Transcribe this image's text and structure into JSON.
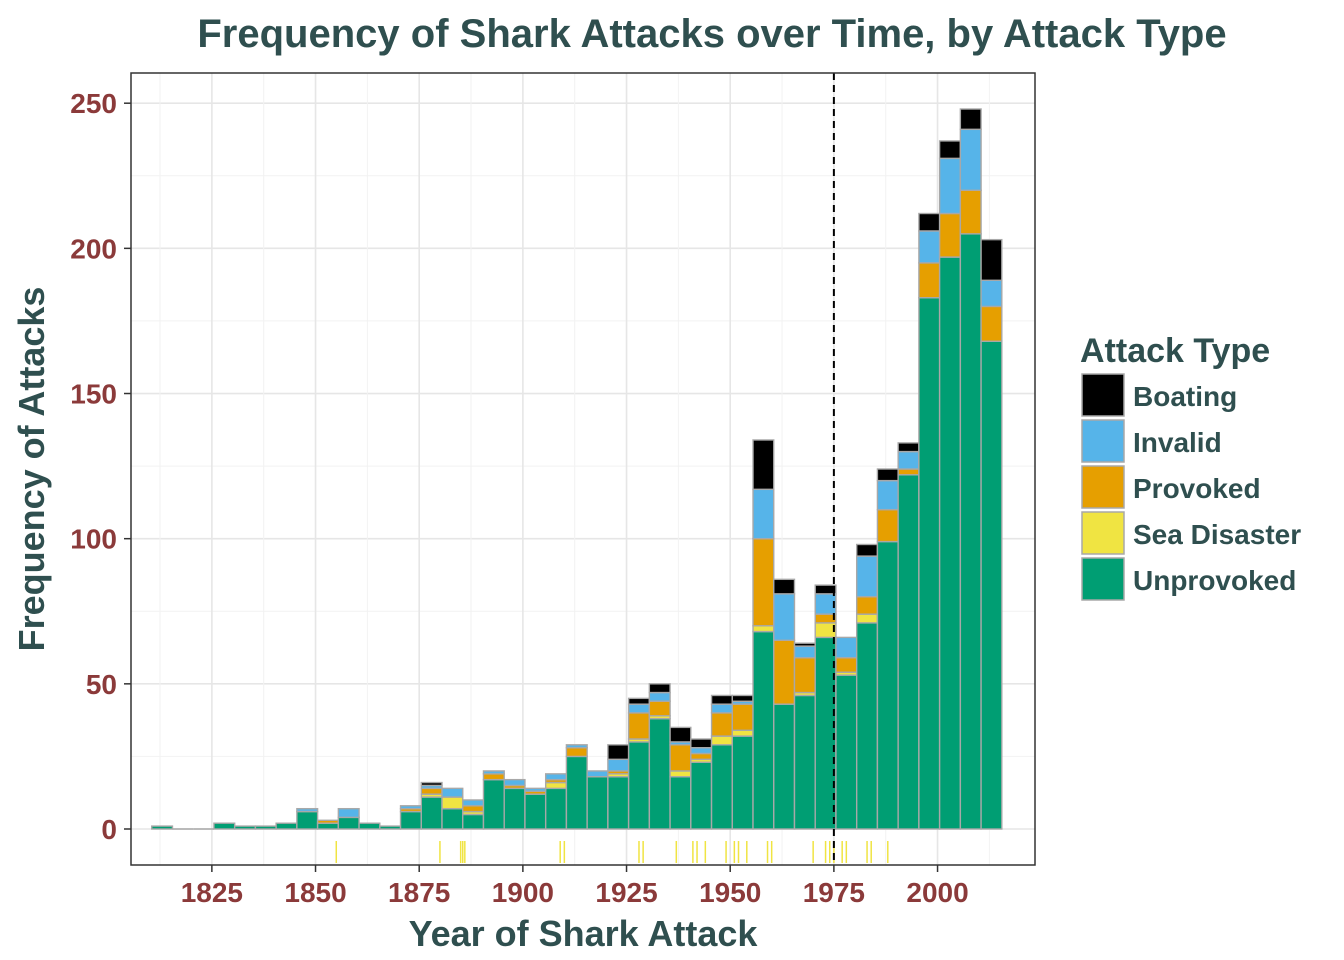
{
  "chart_data": {
    "type": "bar",
    "stacked": true,
    "title": "Frequency of Shark Attacks over Time, by Attack Type",
    "xlabel": "Year of Shark Attack",
    "ylabel": "Frequency of Attacks",
    "bin_width_years": 5,
    "bin_centers": [
      1813,
      1818,
      1823,
      1828,
      1833,
      1838,
      1843,
      1848,
      1853,
      1858,
      1863,
      1868,
      1873,
      1878,
      1883,
      1888,
      1893,
      1898,
      1903,
      1908,
      1913,
      1918,
      1923,
      1928,
      1933,
      1938,
      1943,
      1948,
      1953,
      1958,
      1963,
      1968,
      1973,
      1978,
      1983,
      1988,
      1993,
      1998,
      2003,
      2008,
      2013
    ],
    "series": [
      {
        "name": "Unprovoked",
        "color": "#009e73",
        "values": [
          1,
          0,
          0,
          2,
          1,
          1,
          2,
          6,
          2,
          4,
          2,
          1,
          6,
          11,
          7,
          5,
          17,
          14,
          12,
          14,
          25,
          18,
          18,
          30,
          38,
          18,
          23,
          29,
          32,
          68,
          43,
          46,
          66,
          53,
          71,
          99,
          122,
          183,
          197,
          205,
          168
        ]
      },
      {
        "name": "Sea Disaster",
        "color": "#f0e442",
        "values": [
          0,
          0,
          0,
          0,
          0,
          0,
          0,
          0,
          0,
          0,
          0,
          0,
          0,
          1,
          4,
          1,
          0,
          0,
          0,
          2,
          0,
          0,
          1,
          1,
          1,
          2,
          1,
          3,
          2,
          2,
          0,
          1,
          5,
          1,
          3,
          0,
          0,
          0,
          0,
          0,
          0
        ]
      },
      {
        "name": "Provoked",
        "color": "#e69f00",
        "values": [
          0,
          0,
          0,
          0,
          0,
          0,
          0,
          0,
          1,
          0,
          0,
          0,
          1,
          2,
          0,
          2,
          2,
          1,
          1,
          1,
          3,
          0,
          1,
          9,
          5,
          9,
          2,
          8,
          9,
          30,
          22,
          12,
          3,
          5,
          6,
          11,
          2,
          12,
          15,
          15,
          12
        ]
      },
      {
        "name": "Invalid",
        "color": "#56b4e9",
        "values": [
          0,
          0,
          0,
          0,
          0,
          0,
          0,
          1,
          0,
          3,
          0,
          0,
          1,
          1,
          3,
          2,
          1,
          2,
          1,
          2,
          1,
          2,
          4,
          3,
          3,
          1,
          2,
          3,
          1,
          17,
          16,
          4,
          7,
          7,
          14,
          10,
          6,
          11,
          19,
          21,
          9
        ]
      },
      {
        "name": "Boating",
        "color": "#000000",
        "values": [
          0,
          0,
          0,
          0,
          0,
          0,
          0,
          0,
          0,
          0,
          0,
          0,
          0,
          1,
          0,
          0,
          0,
          0,
          0,
          0,
          0,
          0,
          5,
          2,
          3,
          5,
          3,
          3,
          2,
          17,
          5,
          1,
          3,
          0,
          4,
          4,
          3,
          6,
          6,
          7,
          14
        ]
      }
    ],
    "rug_years": [
      1855,
      1880,
      1885,
      1885.5,
      1886,
      1909,
      1910,
      1928,
      1929,
      1937,
      1941,
      1942,
      1944,
      1949,
      1951,
      1952,
      1954,
      1959,
      1960,
      1970,
      1973,
      1974,
      1975,
      1977,
      1978,
      1983,
      1984,
      1988
    ],
    "reference_line_x": 1975,
    "xlim": [
      1805.5,
      2023.5
    ],
    "ylim": [
      -12.4,
      260.4
    ],
    "x_ticks": [
      1825,
      1850,
      1875,
      1900,
      1925,
      1950,
      1975,
      2000
    ],
    "y_ticks": [
      0,
      50,
      100,
      150,
      200,
      250
    ],
    "grid": true,
    "legend_title": "Attack Type",
    "legend_position": "right",
    "legend_order": [
      "Boating",
      "Invalid",
      "Provoked",
      "Sea Disaster",
      "Unprovoked"
    ]
  }
}
